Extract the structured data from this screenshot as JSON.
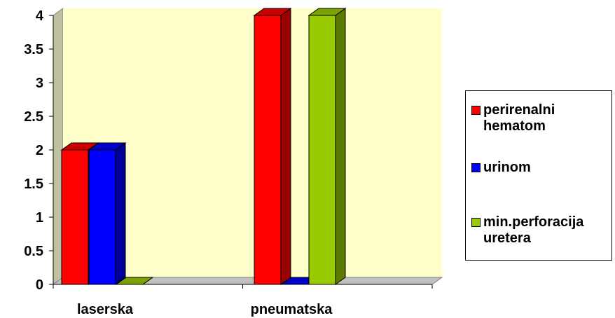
{
  "chart_data": {
    "type": "bar",
    "categories": [
      "laserska",
      "pneumatska"
    ],
    "series": [
      {
        "name": "perirenalni\nhematom",
        "values": [
          2,
          4
        ],
        "color": "#ff0000"
      },
      {
        "name": "urinom",
        "values": [
          2,
          0
        ],
        "color": "#0000ff"
      },
      {
        "name": "min.perforacija\nuretera",
        "values": [
          0,
          4
        ],
        "color": "#99cc00"
      }
    ],
    "ylim": [
      0,
      4
    ],
    "yticks": [
      "0",
      "0.5",
      "1",
      "1.5",
      "2",
      "2.5",
      "3",
      "3.5",
      "4"
    ],
    "grid": false,
    "legend_position": "right",
    "plot_background": "#ffffcc",
    "style": "3d-bar"
  }
}
